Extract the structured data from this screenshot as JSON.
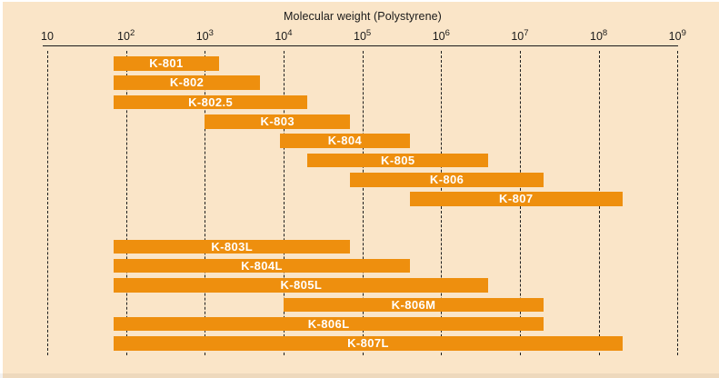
{
  "chart_data": {
    "type": "bar",
    "subtype": "horizontal-log-range-bars",
    "title": "Molecular weight (Polystyrene)",
    "x_axis": {
      "scale": "log10",
      "min": 10,
      "max": 1000000000,
      "ticks": [
        {
          "base": "10",
          "exp": "",
          "value": 10
        },
        {
          "base": "10",
          "exp": "2",
          "value": 100
        },
        {
          "base": "10",
          "exp": "3",
          "value": 1000
        },
        {
          "base": "10",
          "exp": "4",
          "value": 10000
        },
        {
          "base": "10",
          "exp": "5",
          "value": 100000
        },
        {
          "base": "10",
          "exp": "6",
          "value": 1000000
        },
        {
          "base": "10",
          "exp": "7",
          "value": 10000000
        },
        {
          "base": "10",
          "exp": "8",
          "value": 100000000
        },
        {
          "base": "10",
          "exp": "9",
          "value": 1000000000
        }
      ]
    },
    "grid": {
      "vertical_dashed_per_decade": true
    },
    "legend": null,
    "series": [
      {
        "label": "K-801",
        "group": "upper",
        "range_mw": [
          70,
          1500
        ]
      },
      {
        "label": "K-802",
        "group": "upper",
        "range_mw": [
          70,
          5000
        ]
      },
      {
        "label": "K-802.5",
        "group": "upper",
        "range_mw": [
          70,
          20000
        ]
      },
      {
        "label": "K-803",
        "group": "upper",
        "range_mw": [
          1000,
          70000
        ]
      },
      {
        "label": "K-804",
        "group": "upper",
        "range_mw": [
          9000,
          400000
        ]
      },
      {
        "label": "K-805",
        "group": "upper",
        "range_mw": [
          20000,
          4000000
        ]
      },
      {
        "label": "K-806",
        "group": "upper",
        "range_mw": [
          70000,
          20000000
        ]
      },
      {
        "label": "K-807",
        "group": "upper",
        "range_mw": [
          400000,
          200000000
        ]
      },
      {
        "label": "K-803L",
        "group": "lower",
        "range_mw": [
          70,
          70000
        ]
      },
      {
        "label": "K-804L",
        "group": "lower",
        "range_mw": [
          70,
          400000
        ]
      },
      {
        "label": "K-805L",
        "group": "lower",
        "range_mw": [
          70,
          4000000
        ]
      },
      {
        "label": "K-806M",
        "group": "lower",
        "range_mw": [
          10000,
          20000000
        ]
      },
      {
        "label": "K-806L",
        "group": "lower",
        "range_mw": [
          70,
          20000000
        ]
      },
      {
        "label": "K-807L",
        "group": "lower",
        "range_mw": [
          70,
          200000000
        ]
      }
    ]
  },
  "colors": {
    "background": "#FAE5C8",
    "bar": "#EE8F0E",
    "bar_label_text": "#FFFFFF",
    "axis_and_text": "#1A1A1A"
  }
}
